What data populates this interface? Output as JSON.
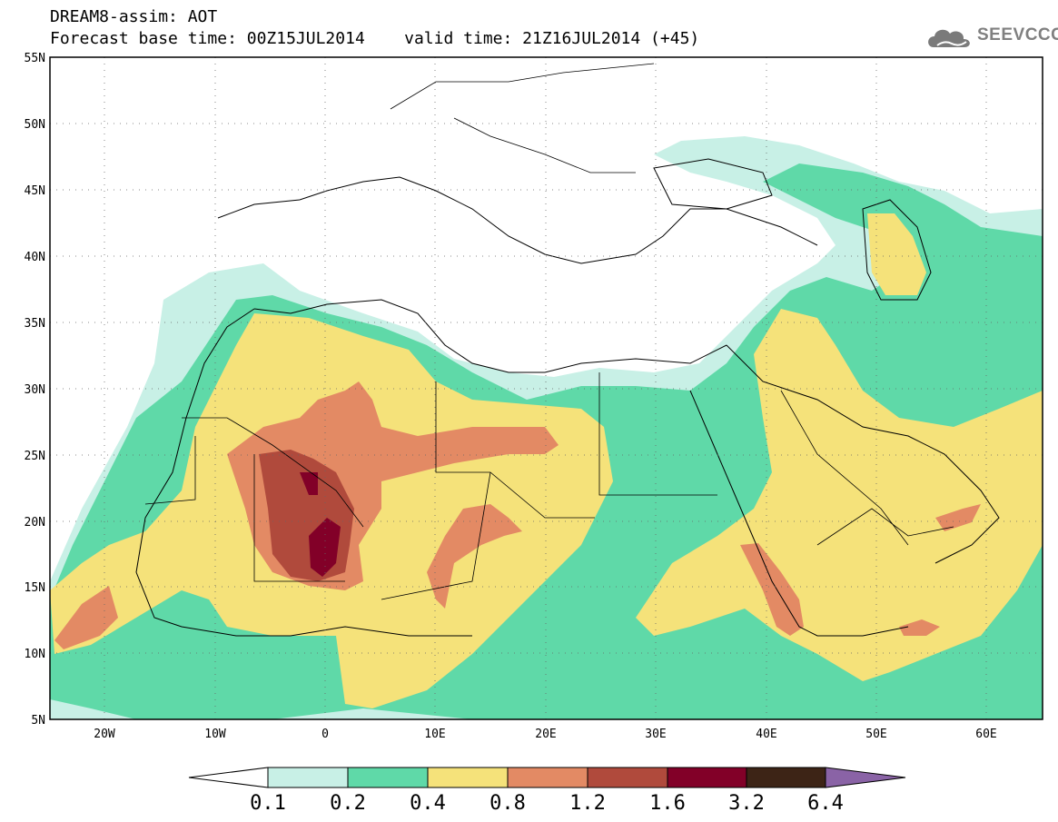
{
  "title": {
    "line1": "DREAM8-assim: AOT",
    "line2": "Forecast base time: 00Z15JUL2014    valid time: 21Z16JUL2014 (+45)"
  },
  "logo": {
    "text": "SEEVCCC",
    "icon": "cloud-icon"
  },
  "map": {
    "lon_range": [
      -25,
      65
    ],
    "lat_range": [
      5,
      55
    ],
    "lat_labels": [
      "55N",
      "50N",
      "45N",
      "40N",
      "35N",
      "30N",
      "25N",
      "20N",
      "15N",
      "10N",
      "5N"
    ],
    "lon_labels": [
      "20W",
      "10W",
      "0",
      "10E",
      "20E",
      "30E",
      "40E",
      "50E",
      "60E"
    ],
    "gridlines": "dotted"
  },
  "colorbar": {
    "ticks": [
      "0.1",
      "0.2",
      "0.4",
      "0.8",
      "1.2",
      "1.6",
      "3.2",
      "6.4"
    ],
    "colors": [
      "#c8f0e6",
      "#5fd9a8",
      "#f5e27a",
      "#e38a64",
      "#b04a3c",
      "#820028",
      "#3d2416",
      "#8a63a6"
    ]
  }
}
